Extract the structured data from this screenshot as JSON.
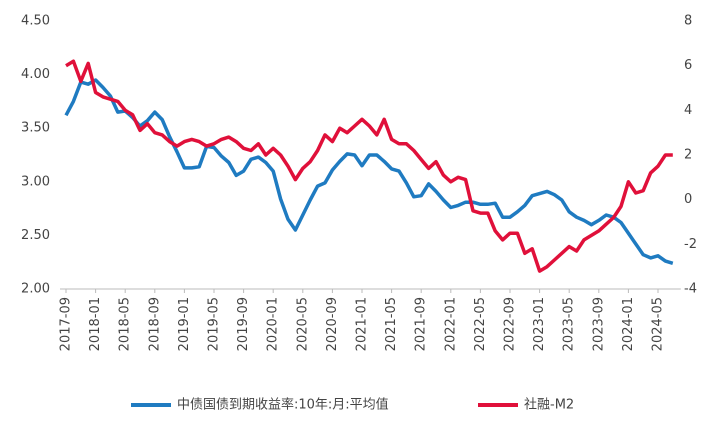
{
  "chart_data": {
    "type": "line",
    "categories": [
      "2017-09",
      null,
      null,
      null,
      "2018-01",
      null,
      null,
      null,
      "2018-05",
      null,
      null,
      null,
      "2018-09",
      null,
      null,
      null,
      "2019-01",
      null,
      null,
      null,
      "2019-05",
      null,
      null,
      null,
      "2019-09",
      null,
      null,
      null,
      "2020-01",
      null,
      null,
      null,
      "2020-05",
      null,
      null,
      null,
      "2020-09",
      null,
      null,
      null,
      "2021-01",
      null,
      null,
      null,
      "2021-05",
      null,
      null,
      null,
      "2021-09",
      null,
      null,
      null,
      "2022-01",
      null,
      null,
      null,
      "2022-05",
      null,
      null,
      null,
      "2022-09",
      null,
      null,
      null,
      "2023-01",
      null,
      null,
      null,
      "2023-05",
      null,
      null,
      null,
      "2023-09",
      null,
      null,
      null,
      "2024-01",
      null,
      null,
      null,
      "2024-05",
      null,
      null
    ],
    "series": [
      {
        "name": "中债国债到期收益率:10年:月:平均值",
        "color": "#1f7bc1",
        "values": [
          3.62,
          3.75,
          3.93,
          3.91,
          3.95,
          3.88,
          3.8,
          3.65,
          3.66,
          3.6,
          3.52,
          3.57,
          3.65,
          3.58,
          3.42,
          3.28,
          3.13,
          3.13,
          3.14,
          3.33,
          3.32,
          3.24,
          3.18,
          3.06,
          3.1,
          3.21,
          3.23,
          3.18,
          3.1,
          2.84,
          2.65,
          2.55,
          2.69,
          2.83,
          2.96,
          2.99,
          3.11,
          3.19,
          3.26,
          3.25,
          3.15,
          3.25,
          3.25,
          3.19,
          3.12,
          3.1,
          2.99,
          2.86,
          2.87,
          2.98,
          2.91,
          2.83,
          2.76,
          2.78,
          2.81,
          2.81,
          2.79,
          2.79,
          2.8,
          2.67,
          2.67,
          2.72,
          2.78,
          2.87,
          2.89,
          2.91,
          2.88,
          2.83,
          2.72,
          2.67,
          2.64,
          2.6,
          2.64,
          2.69,
          2.67,
          2.62,
          2.52,
          2.42,
          2.32,
          2.29,
          2.31,
          2.26,
          2.24
        ]
      },
      {
        "name": "社融-M2",
        "color": "#e0103a",
        "axis": "y2",
        "values": [
          6.0,
          6.2,
          5.3,
          6.1,
          4.8,
          4.6,
          4.5,
          4.4,
          4.0,
          3.8,
          3.1,
          3.4,
          3.0,
          2.9,
          2.6,
          2.4,
          2.6,
          2.7,
          2.6,
          2.4,
          2.5,
          2.7,
          2.8,
          2.6,
          2.3,
          2.2,
          2.5,
          2.0,
          2.3,
          2.0,
          1.5,
          0.9,
          1.4,
          1.7,
          2.2,
          2.9,
          2.6,
          3.2,
          3.0,
          3.3,
          3.6,
          3.3,
          2.9,
          3.6,
          2.7,
          2.5,
          2.5,
          2.2,
          1.8,
          1.4,
          1.7,
          1.1,
          0.8,
          1.0,
          0.9,
          -0.5,
          -0.6,
          -0.6,
          -1.4,
          -1.8,
          -1.5,
          -1.5,
          -2.4,
          -2.2,
          -3.2,
          -3.0,
          -2.7,
          -2.4,
          -2.1,
          -2.3,
          -1.8,
          -1.6,
          -1.4,
          -1.1,
          -0.8,
          -0.3,
          0.8,
          0.3,
          0.4,
          1.2,
          1.5,
          2.0,
          2.0
        ]
      }
    ],
    "ylim": [
      2.0,
      4.5
    ],
    "yticks": [
      {
        "value": 2.0,
        "label": "2.00"
      },
      {
        "value": 2.5,
        "label": "2.50"
      },
      {
        "value": 3.0,
        "label": "3.00"
      },
      {
        "value": 3.5,
        "label": "3.50"
      },
      {
        "value": 4.0,
        "label": "4.00"
      },
      {
        "value": 4.5,
        "label": "4.50"
      }
    ],
    "y2lim": [
      -4,
      8
    ],
    "y2ticks": [
      -4,
      -2,
      0,
      2,
      4,
      6,
      8
    ],
    "grid": false,
    "legend": "bottom"
  }
}
